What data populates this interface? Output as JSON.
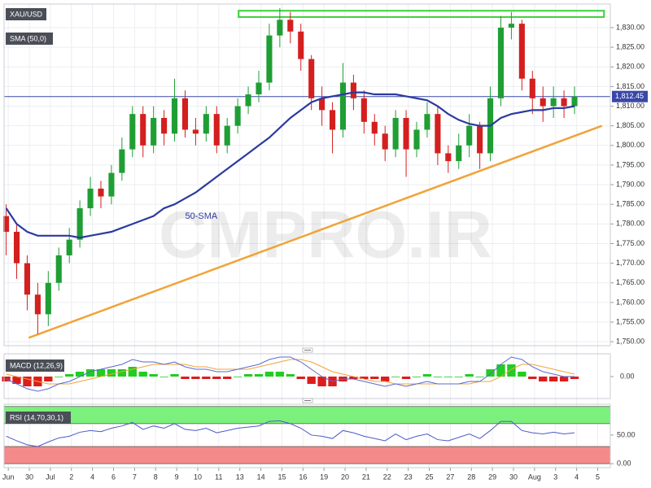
{
  "chart_data": [
    {
      "type": "candlestick",
      "title": "XAU/USD",
      "watermark": "CMPRO.IR",
      "up_color": "#1f9e34",
      "down_color": "#d41f1f",
      "xlim": [
        -0.2,
        28.6
      ],
      "ylim": [
        1749,
        1836
      ],
      "xticks": [
        {
          "value": 0,
          "label": "Jun"
        },
        {
          "value": 1,
          "label": "30"
        },
        {
          "value": 2,
          "label": "Jul"
        },
        {
          "value": 3,
          "label": "2"
        },
        {
          "value": 4,
          "label": "4"
        },
        {
          "value": 5,
          "label": "6"
        },
        {
          "value": 6,
          "label": "7"
        },
        {
          "value": 7,
          "label": "8"
        },
        {
          "value": 8,
          "label": "9"
        },
        {
          "value": 9,
          "label": "10"
        },
        {
          "value": 10,
          "label": "11"
        },
        {
          "value": 11,
          "label": "13"
        },
        {
          "value": 12,
          "label": "14"
        },
        {
          "value": 13,
          "label": "15"
        },
        {
          "value": 14,
          "label": "16"
        },
        {
          "value": 15,
          "label": "19"
        },
        {
          "value": 16,
          "label": "20"
        },
        {
          "value": 17,
          "label": "21"
        },
        {
          "value": 18,
          "label": "22"
        },
        {
          "value": 19,
          "label": "23"
        },
        {
          "value": 20,
          "label": "25"
        },
        {
          "value": 21,
          "label": "27"
        },
        {
          "value": 22,
          "label": "28"
        },
        {
          "value": 23,
          "label": "29"
        },
        {
          "value": 24,
          "label": "30"
        },
        {
          "value": 25,
          "label": "Aug"
        },
        {
          "value": 26,
          "label": "3"
        },
        {
          "value": 27,
          "label": "4"
        },
        {
          "value": 28,
          "label": "5"
        }
      ],
      "yticks": [
        {
          "value": 1750,
          "label": "1,750.00"
        },
        {
          "value": 1755,
          "label": "1,755.00"
        },
        {
          "value": 1760,
          "label": "1,760.00"
        },
        {
          "value": 1765,
          "label": "1,765.00"
        },
        {
          "value": 1770,
          "label": "1,770.00"
        },
        {
          "value": 1775,
          "label": "1,775.00"
        },
        {
          "value": 1780,
          "label": "1,780.00"
        },
        {
          "value": 1785,
          "label": "1,785.00"
        },
        {
          "value": 1790,
          "label": "1,790.00"
        },
        {
          "value": 1795,
          "label": "1,795.00"
        },
        {
          "value": 1800,
          "label": "1,800.00"
        },
        {
          "value": 1805,
          "label": "1,805.00"
        },
        {
          "value": 1810,
          "label": "1,810.00"
        },
        {
          "value": 1815,
          "label": "1,815.00"
        },
        {
          "value": 1820,
          "label": "1,820.00"
        },
        {
          "value": 1825,
          "label": "1,825.00"
        },
        {
          "value": 1830,
          "label": "1,830.00"
        }
      ],
      "x": [
        -0.1,
        0.4,
        0.9,
        1.4,
        1.9,
        2.4,
        2.9,
        3.4,
        3.9,
        4.4,
        4.9,
        5.4,
        5.9,
        6.4,
        6.9,
        7.4,
        7.9,
        8.4,
        8.9,
        9.4,
        9.9,
        10.4,
        10.9,
        11.4,
        11.9,
        12.4,
        12.9,
        13.4,
        13.9,
        14.4,
        14.9,
        15.4,
        15.9,
        16.4,
        16.9,
        17.4,
        17.9,
        18.4,
        18.9,
        19.4,
        19.9,
        20.4,
        20.9,
        21.4,
        21.9,
        22.4,
        22.9,
        23.4,
        23.9,
        24.4,
        24.9,
        25.4,
        25.9,
        26.4,
        26.9
      ],
      "open": [
        1782,
        1778,
        1770,
        1762,
        1757,
        1765,
        1772,
        1776,
        1784,
        1789,
        1787,
        1793,
        1799,
        1808,
        1800,
        1807,
        1803,
        1812,
        1804,
        1803,
        1808,
        1800,
        1805,
        1810,
        1813,
        1816,
        1828,
        1832,
        1829,
        1822,
        1812,
        1809,
        1804,
        1816,
        1812,
        1806,
        1803,
        1799,
        1807,
        1799,
        1804,
        1808,
        1798,
        1796,
        1800,
        1805,
        1798,
        1812,
        1830,
        1831,
        1817,
        1812,
        1810,
        1812,
        1810
      ],
      "high": [
        1785,
        1780,
        1772,
        1765,
        1768,
        1774,
        1779,
        1786,
        1792,
        1791,
        1795,
        1802,
        1810,
        1810,
        1810,
        1809,
        1817,
        1814,
        1807,
        1810,
        1810,
        1807,
        1812,
        1815,
        1819,
        1831,
        1835,
        1834,
        1831,
        1823,
        1815,
        1811,
        1821,
        1818,
        1814,
        1808,
        1805,
        1809,
        1809,
        1806,
        1811,
        1810,
        1800,
        1803,
        1808,
        1806,
        1815,
        1833,
        1834,
        1832,
        1819,
        1815,
        1815,
        1814,
        1815
      ],
      "low": [
        1772,
        1766,
        1758,
        1752,
        1754,
        1763,
        1770,
        1774,
        1782,
        1784,
        1785,
        1791,
        1797,
        1797,
        1798,
        1800,
        1801,
        1802,
        1800,
        1801,
        1798,
        1798,
        1803,
        1808,
        1811,
        1814,
        1825,
        1826,
        1819,
        1809,
        1805,
        1798,
        1802,
        1809,
        1803,
        1800,
        1796,
        1797,
        1792,
        1797,
        1802,
        1795,
        1793,
        1794,
        1797,
        1794,
        1796,
        1810,
        1827,
        1814,
        1808,
        1806,
        1807,
        1807,
        1808
      ],
      "close": [
        1778,
        1770,
        1762,
        1757,
        1765,
        1772,
        1776,
        1784,
        1789,
        1787,
        1793,
        1799,
        1808,
        1800,
        1807,
        1803,
        1812,
        1804,
        1803,
        1808,
        1800,
        1805,
        1810,
        1813,
        1816,
        1828,
        1832,
        1829,
        1822,
        1812,
        1809,
        1804,
        1816,
        1812,
        1806,
        1803,
        1799,
        1807,
        1799,
        1804,
        1808,
        1798,
        1796,
        1800,
        1805,
        1798,
        1812,
        1830,
        1831,
        1817,
        1812,
        1810,
        1812,
        1810,
        1812.45
      ],
      "overlay": {
        "name": "SMA (50,0)",
        "label": "50-SMA",
        "color": "#2b3aa0",
        "values": [
          1784,
          1780,
          1778,
          1777,
          1777,
          1777,
          1777,
          1776.5,
          1777,
          1777.5,
          1778,
          1779,
          1780,
          1781,
          1782,
          1784,
          1785,
          1786.5,
          1788,
          1790,
          1792,
          1794,
          1796,
          1798,
          1800,
          1802,
          1804.5,
          1807,
          1809,
          1811,
          1812,
          1812.5,
          1813,
          1813.5,
          1813.5,
          1813,
          1813,
          1813,
          1812.5,
          1812,
          1811.5,
          1810,
          1808,
          1806.5,
          1805.5,
          1805,
          1805,
          1807,
          1808,
          1808.5,
          1809,
          1809,
          1809.5,
          1809.5,
          1810
        ]
      },
      "trendline": {
        "x": [
          0.97,
          28.2
        ],
        "values": [
          1751,
          1805
        ],
        "color": "#f0a43a"
      },
      "resistance": {
        "x": [
          10.94,
          28.3
        ],
        "values": [
          1832.7,
          1834.3
        ],
        "color": "#3bd13b"
      },
      "last_price": {
        "value": 1812.45,
        "label": "1,812.45",
        "color": "#3848a8"
      }
    },
    {
      "type": "macd",
      "title": "MACD (12,26,9)",
      "ylim": [
        -9,
        9
      ],
      "yticks": [
        {
          "value": 0,
          "label": "0.00"
        }
      ],
      "macd": {
        "color": "#5a6ad0",
        "values": [
          -1,
          -3,
          -5,
          -6,
          -5,
          -3,
          -2,
          0,
          2,
          3,
          4,
          5,
          7,
          6,
          6,
          5,
          6,
          4,
          3,
          3,
          2,
          2,
          3,
          4,
          5,
          7,
          8,
          8,
          6,
          3,
          0,
          -2,
          -1,
          -1,
          -2,
          -3,
          -4,
          -3,
          -4,
          -3,
          -2,
          -3,
          -3,
          -3,
          -2,
          -2,
          1,
          5,
          8,
          7,
          4,
          2,
          1,
          0,
          0
        ]
      },
      "signal": {
        "color": "#f0a43a",
        "values": [
          1,
          0,
          -1,
          -2,
          -3,
          -3,
          -3,
          -2,
          -1,
          0,
          1,
          2,
          3,
          4,
          5,
          5,
          5,
          5,
          4,
          4,
          3,
          3,
          3,
          3,
          4,
          5,
          6,
          7,
          7,
          6,
          4,
          2,
          1,
          0,
          -1,
          -2,
          -2,
          -3,
          -3,
          -3,
          -3,
          -3,
          -3,
          -3,
          -3,
          -2,
          -2,
          0,
          3,
          5,
          5,
          4,
          3,
          2,
          1
        ]
      },
      "histogram": {
        "positive_color": "#22cc22",
        "negative_color": "#dd1c1c",
        "values": [
          -2,
          -3,
          -4,
          -4,
          -2,
          0,
          1,
          2,
          3,
          3,
          3,
          3,
          4,
          2,
          1,
          0,
          1,
          -1,
          -1,
          -1,
          -1,
          -1,
          0,
          1,
          1,
          2,
          2,
          1,
          -1,
          -3,
          -4,
          -4,
          -2,
          -1,
          -1,
          -1,
          -2,
          0,
          -1,
          0,
          1,
          0,
          0,
          0,
          1,
          0,
          3,
          5,
          5,
          2,
          -1,
          -2,
          -2,
          -2,
          -1
        ]
      }
    },
    {
      "type": "rsi",
      "title": "RSI (14,70,30,1)",
      "color": "#4a5ac8",
      "ylim": [
        -7,
        104
      ],
      "yticks": [
        {
          "value": 50,
          "label": "50.00"
        },
        {
          "value": 0,
          "label": "0.00"
        }
      ],
      "upper_band": {
        "values": [
          70,
          100
        ],
        "color": "#7cf07c"
      },
      "lower_band": {
        "values": [
          0,
          30
        ],
        "color": "#f58a8a"
      },
      "values": [
        48,
        40,
        33,
        30,
        38,
        45,
        48,
        55,
        58,
        56,
        62,
        66,
        72,
        60,
        66,
        62,
        70,
        60,
        58,
        62,
        54,
        58,
        62,
        64,
        66,
        74,
        75,
        70,
        62,
        50,
        48,
        44,
        58,
        54,
        48,
        44,
        40,
        52,
        42,
        48,
        52,
        42,
        40,
        46,
        52,
        44,
        58,
        74,
        74,
        58,
        54,
        52,
        55,
        52,
        54
      ]
    }
  ]
}
